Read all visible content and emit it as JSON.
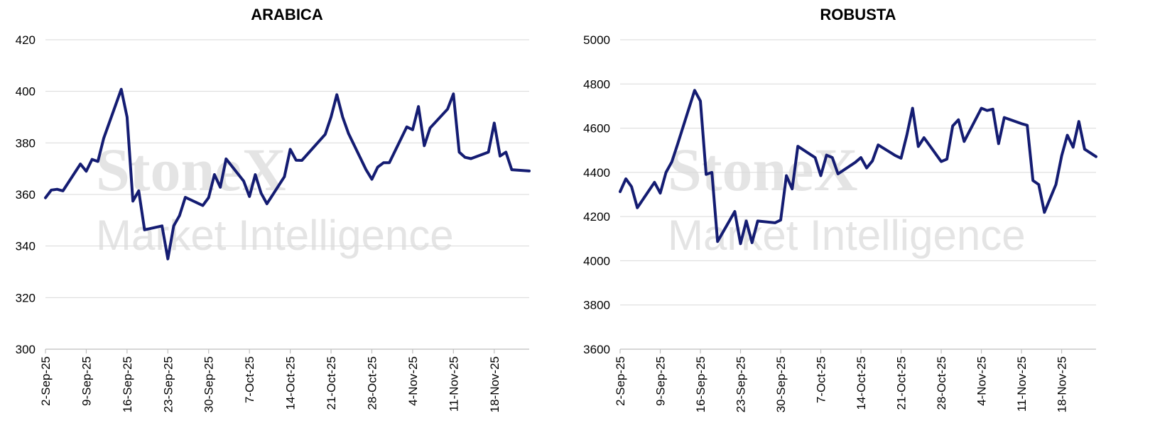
{
  "watermark": {
    "line1": "StoneX",
    "line2": "Market Intelligence"
  },
  "chart_data": [
    {
      "type": "line",
      "title": "ARABICA",
      "xlabel": "",
      "ylabel": "",
      "ylim": [
        300,
        420
      ],
      "yticks": [
        "420",
        "400",
        "380",
        "360",
        "340",
        "320",
        "300"
      ],
      "xticks": [
        "2-Sep-25",
        "9-Sep-25",
        "16-Sep-25",
        "23-Sep-25",
        "30-Sep-25",
        "7-Oct-25",
        "14-Oct-25",
        "21-Oct-25",
        "28-Oct-25",
        "4-Nov-25",
        "11-Nov-25",
        "18-Nov-25"
      ],
      "xrange": [
        "2025-09-02",
        "2025-11-24"
      ],
      "grid": true,
      "series": [
        {
          "color": "#141c72",
          "points": [
            [
              "2025-09-02",
              358.7
            ],
            [
              "2025-09-03",
              361.7
            ],
            [
              "2025-09-04",
              362.0
            ],
            [
              "2025-09-05",
              361.4
            ],
            [
              "2025-09-08",
              371.8
            ],
            [
              "2025-09-09",
              369.0
            ],
            [
              "2025-09-10",
              373.6
            ],
            [
              "2025-09-11",
              372.8
            ],
            [
              "2025-09-12",
              381.8
            ],
            [
              "2025-09-15",
              400.8
            ],
            [
              "2025-09-16",
              390.0
            ],
            [
              "2025-09-17",
              357.4
            ],
            [
              "2025-09-18",
              361.4
            ],
            [
              "2025-09-19",
              346.3
            ],
            [
              "2025-09-22",
              347.8
            ],
            [
              "2025-09-23",
              335.0
            ],
            [
              "2025-09-24",
              347.8
            ],
            [
              "2025-09-25",
              351.8
            ],
            [
              "2025-09-26",
              358.9
            ],
            [
              "2025-09-29",
              355.7
            ],
            [
              "2025-09-30",
              358.8
            ],
            [
              "2025-10-01",
              367.7
            ],
            [
              "2025-10-02",
              362.8
            ],
            [
              "2025-10-03",
              373.8
            ],
            [
              "2025-10-06",
              365.2
            ],
            [
              "2025-10-07",
              359.2
            ],
            [
              "2025-10-08",
              367.7
            ],
            [
              "2025-10-09",
              360.5
            ],
            [
              "2025-10-10",
              356.4
            ],
            [
              "2025-10-13",
              366.9
            ],
            [
              "2025-10-14",
              377.5
            ],
            [
              "2025-10-15",
              373.3
            ],
            [
              "2025-10-16",
              373.2
            ],
            [
              "2025-10-20",
              383.3
            ],
            [
              "2025-10-21",
              390.0
            ],
            [
              "2025-10-22",
              398.7
            ],
            [
              "2025-10-23",
              390.0
            ],
            [
              "2025-10-24",
              383.6
            ],
            [
              "2025-10-27",
              369.6
            ],
            [
              "2025-10-28",
              365.9
            ],
            [
              "2025-10-29",
              370.6
            ],
            [
              "2025-10-30",
              372.3
            ],
            [
              "2025-10-31",
              372.3
            ],
            [
              "2025-11-03",
              386.2
            ],
            [
              "2025-11-04",
              385.1
            ],
            [
              "2025-11-05",
              394.1
            ],
            [
              "2025-11-06",
              378.9
            ],
            [
              "2025-11-07",
              385.8
            ],
            [
              "2025-11-10",
              393.1
            ],
            [
              "2025-11-11",
              399.0
            ],
            [
              "2025-11-12",
              376.4
            ],
            [
              "2025-11-13",
              374.4
            ],
            [
              "2025-11-14",
              373.9
            ],
            [
              "2025-11-17",
              376.4
            ],
            [
              "2025-11-18",
              387.7
            ],
            [
              "2025-11-19",
              374.9
            ],
            [
              "2025-11-20",
              376.4
            ],
            [
              "2025-11-21",
              369.6
            ],
            [
              "2025-11-24",
              369.1
            ]
          ]
        }
      ]
    },
    {
      "type": "line",
      "title": "ROBUSTA",
      "xlabel": "",
      "ylabel": "",
      "ylim": [
        3600,
        5000
      ],
      "yticks": [
        "5000",
        "4800",
        "4600",
        "4400",
        "4200",
        "4000",
        "3800",
        "3600"
      ],
      "xticks": [
        "2-Sep-25",
        "9-Sep-25",
        "16-Sep-25",
        "23-Sep-25",
        "30-Sep-25",
        "7-Oct-25",
        "14-Oct-25",
        "21-Oct-25",
        "28-Oct-25",
        "4-Nov-25",
        "11-Nov-25",
        "18-Nov-25"
      ],
      "xrange": [
        "2025-09-02",
        "2025-11-24"
      ],
      "grid": true,
      "series": [
        {
          "color": "#141c72",
          "points": [
            [
              "2025-09-02",
              4313
            ],
            [
              "2025-09-03",
              4371
            ],
            [
              "2025-09-04",
              4335
            ],
            [
              "2025-09-05",
              4240
            ],
            [
              "2025-09-08",
              4355
            ],
            [
              "2025-09-09",
              4306
            ],
            [
              "2025-09-10",
              4400
            ],
            [
              "2025-09-11",
              4447
            ],
            [
              "2025-09-12",
              4525
            ],
            [
              "2025-09-15",
              4771
            ],
            [
              "2025-09-16",
              4723
            ],
            [
              "2025-09-17",
              4391
            ],
            [
              "2025-09-18",
              4400
            ],
            [
              "2025-09-19",
              4087
            ],
            [
              "2025-09-22",
              4223
            ],
            [
              "2025-09-23",
              4077
            ],
            [
              "2025-09-24",
              4180
            ],
            [
              "2025-09-25",
              4082
            ],
            [
              "2025-09-26",
              4180
            ],
            [
              "2025-09-29",
              4172
            ],
            [
              "2025-09-30",
              4184
            ],
            [
              "2025-10-01",
              4385
            ],
            [
              "2025-10-02",
              4325
            ],
            [
              "2025-10-03",
              4518
            ],
            [
              "2025-10-06",
              4467
            ],
            [
              "2025-10-07",
              4385
            ],
            [
              "2025-10-08",
              4478
            ],
            [
              "2025-10-09",
              4467
            ],
            [
              "2025-10-10",
              4393
            ],
            [
              "2025-10-13",
              4445
            ],
            [
              "2025-10-14",
              4467
            ],
            [
              "2025-10-15",
              4420
            ],
            [
              "2025-10-16",
              4452
            ],
            [
              "2025-10-17",
              4524
            ],
            [
              "2025-10-20",
              4476
            ],
            [
              "2025-10-21",
              4464
            ],
            [
              "2025-10-22",
              4568
            ],
            [
              "2025-10-23",
              4690
            ],
            [
              "2025-10-24",
              4517
            ],
            [
              "2025-10-25",
              4557
            ],
            [
              "2025-10-28",
              4449
            ],
            [
              "2025-10-29",
              4460
            ],
            [
              "2025-10-30",
              4610
            ],
            [
              "2025-10-31",
              4638
            ],
            [
              "2025-11-01",
              4540
            ],
            [
              "2025-11-04",
              4690
            ],
            [
              "2025-11-05",
              4680
            ],
            [
              "2025-11-06",
              4686
            ],
            [
              "2025-11-07",
              4530
            ],
            [
              "2025-11-08",
              4648
            ],
            [
              "2025-11-11",
              4620
            ],
            [
              "2025-11-12",
              4613
            ],
            [
              "2025-11-13",
              4363
            ],
            [
              "2025-11-14",
              4345
            ],
            [
              "2025-11-15",
              4219
            ],
            [
              "2025-11-17",
              4345
            ],
            [
              "2025-11-18",
              4475
            ],
            [
              "2025-11-19",
              4568
            ],
            [
              "2025-11-20",
              4514
            ],
            [
              "2025-11-21",
              4630
            ],
            [
              "2025-11-22",
              4505
            ],
            [
              "2025-11-24",
              4471
            ]
          ]
        }
      ]
    }
  ]
}
